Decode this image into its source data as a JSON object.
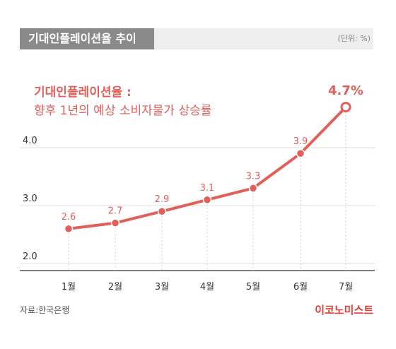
{
  "header": {
    "title": "기대인플레이션율 추이",
    "unit": "(단위: %)"
  },
  "description": {
    "line1": "기대인플레이션율 :",
    "line2": "향후 1년의 예상 소비자물가 상승률"
  },
  "footer": {
    "source": "자료:한국은행",
    "brand": "이코노미스트"
  },
  "colors": {
    "accent": "#e25f5a",
    "brand": "#e03c31",
    "header_bg": "#8a8a8a"
  },
  "chart_data": {
    "type": "line",
    "categories": [
      "1월",
      "2월",
      "3월",
      "4월",
      "5월",
      "6월",
      "7월"
    ],
    "series": [
      {
        "values": [
          2.6,
          2.7,
          2.9,
          3.1,
          3.3,
          3.9,
          4.7
        ]
      }
    ],
    "data_labels": [
      "2.6",
      "2.7",
      "2.9",
      "3.1",
      "3.3",
      "3.9",
      "4.7%"
    ],
    "yticks": [
      "2.0",
      "3.0",
      "4.0"
    ],
    "ylim": [
      2.0,
      4.7
    ],
    "grid": "horizontal"
  }
}
